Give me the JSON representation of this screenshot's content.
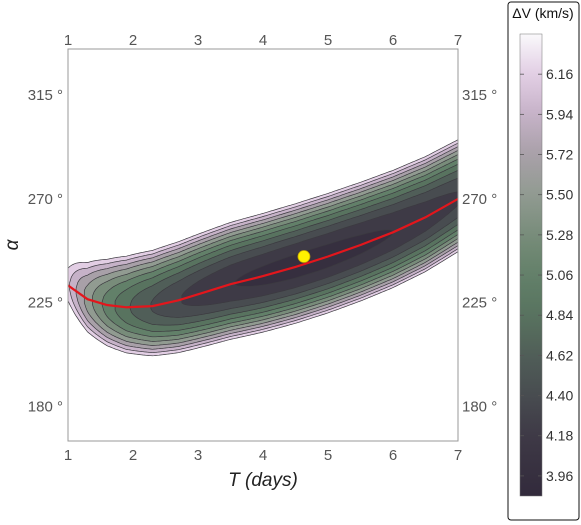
{
  "chart_data": {
    "type": "contour",
    "xlabel": "T (days)",
    "ylabel": "α",
    "xlim": [
      1,
      7
    ],
    "ylim": [
      165,
      335
    ],
    "xticks": [
      1,
      2,
      3,
      4,
      5,
      6,
      7
    ],
    "yticks": [
      180,
      225,
      270,
      315
    ],
    "ytick_labels": [
      "180 °",
      "225 °",
      "270 °",
      "315 °"
    ],
    "colorbar": {
      "title": "ΔV (km/s)",
      "range": [
        3.85,
        6.38
      ],
      "ticks": [
        6.16,
        5.94,
        5.72,
        5.5,
        5.28,
        5.06,
        4.84,
        4.62,
        4.4,
        4.18,
        3.96
      ],
      "tick_labels": [
        "6.16",
        "5.94",
        "5.72",
        "5.50",
        "5.28",
        "5.06",
        "4.84",
        "4.62",
        "4.40",
        "4.18",
        "3.96"
      ]
    },
    "contour_levels": [
      6.16,
      5.94,
      5.72,
      5.5,
      5.28,
      5.06,
      4.84,
      4.62,
      4.4,
      4.18,
      3.96
    ],
    "optimal_curve": {
      "color": "#e3161c",
      "points": [
        [
          1.0,
          232.5
        ],
        [
          1.3,
          226.5
        ],
        [
          1.6,
          224.0
        ],
        [
          1.9,
          223.0
        ],
        [
          2.3,
          223.5
        ],
        [
          2.7,
          226.0
        ],
        [
          3.1,
          229.5
        ],
        [
          3.5,
          233.0
        ],
        [
          4.0,
          236.5
        ],
        [
          4.5,
          240.5
        ],
        [
          5.0,
          245.0
        ],
        [
          5.5,
          250.0
        ],
        [
          6.0,
          255.5
        ],
        [
          6.5,
          262.0
        ],
        [
          7.0,
          270.0
        ]
      ]
    },
    "minimum_marker": {
      "x": 4.63,
      "y": 245.0,
      "color": "#fff200"
    }
  }
}
